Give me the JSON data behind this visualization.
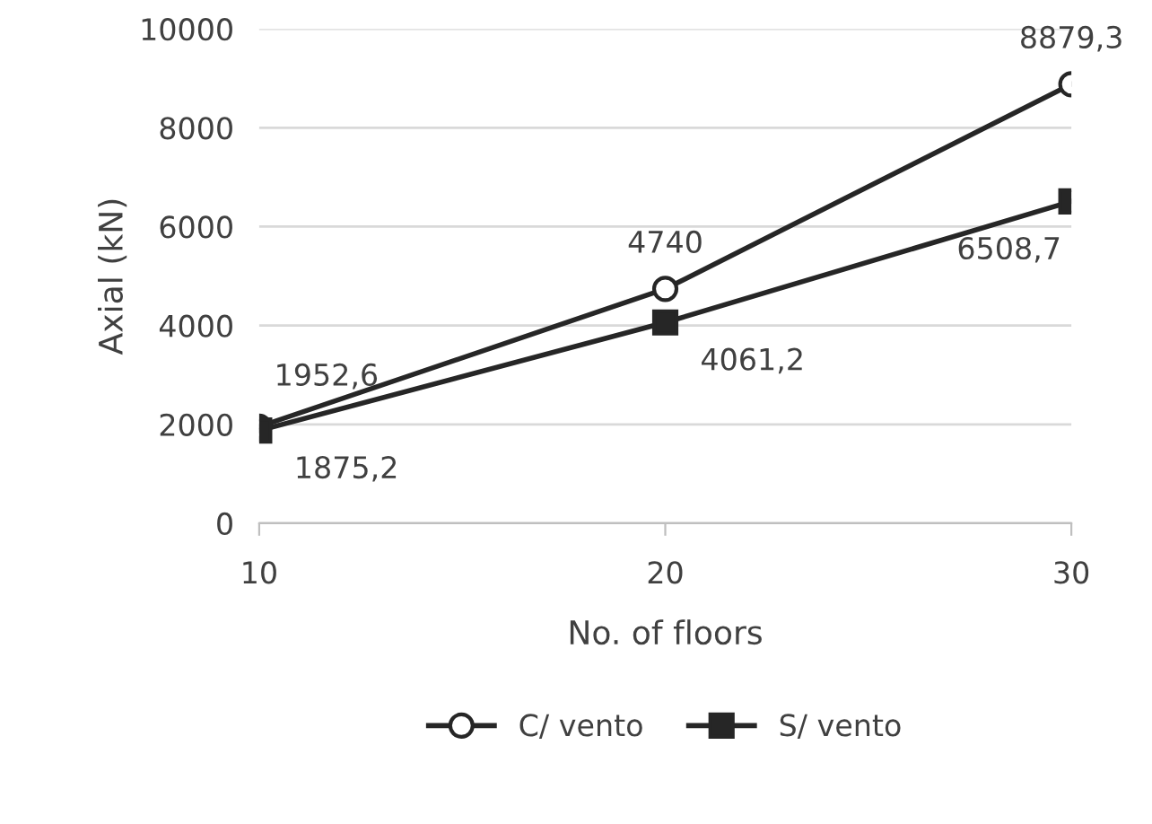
{
  "chart_data": {
    "type": "line",
    "xlabel": "No. of floors",
    "ylabel": "Axial (kN)",
    "x": [
      10,
      20,
      30
    ],
    "xlim": [
      10,
      30
    ],
    "xticks": [
      10,
      20,
      30
    ],
    "ylim": [
      0,
      10000
    ],
    "yticks": [
      0,
      2000,
      4000,
      6000,
      8000,
      10000
    ],
    "grid": "y",
    "legend": "bottom",
    "series": [
      {
        "name": "C/ vento",
        "color": "#262626",
        "marker": "circle",
        "values": [
          1952.6,
          4740,
          8879.3
        ],
        "value_labels": [
          "1952,6",
          "4740",
          "8879,3"
        ]
      },
      {
        "name": "S/ vento",
        "color": "#262626",
        "marker": "square",
        "values": [
          1875.2,
          4061.2,
          6508.7
        ],
        "value_labels": [
          "1875,2",
          "4061,2",
          "6508,7"
        ]
      }
    ]
  }
}
